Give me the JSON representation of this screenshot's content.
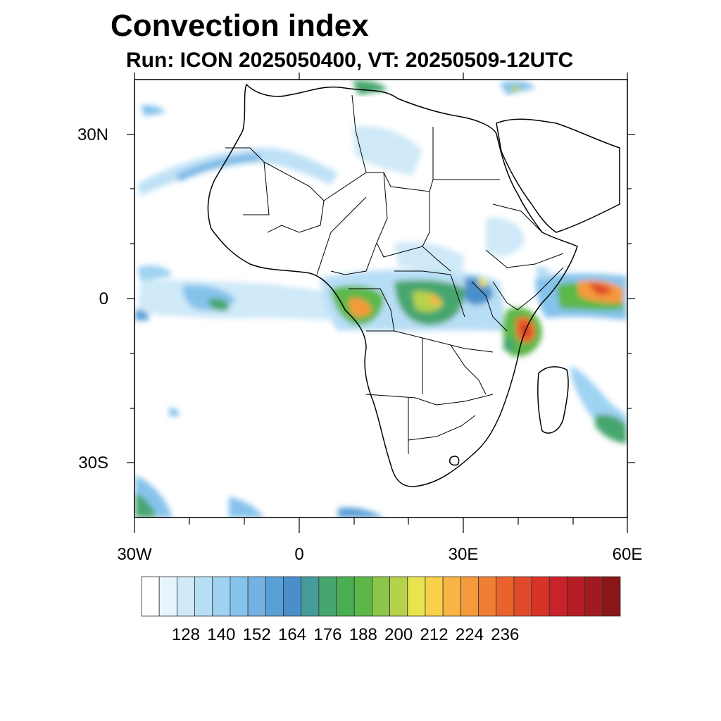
{
  "title": "Convection index",
  "subtitle": "Run: ICON 2025050400,  VT: 20250509-12UTC",
  "map": {
    "region": "Africa",
    "projection": "cylindrical equidistant",
    "lon_range": [
      -30,
      60
    ],
    "lat_range": [
      -40,
      40
    ],
    "lat_labels": [
      "30N",
      "0",
      "30S"
    ],
    "lon_labels": [
      "30W",
      "0",
      "30E",
      "60E"
    ],
    "boundaries": "country borders and coastlines (black)"
  },
  "colorbar": {
    "labels": [
      "128",
      "140",
      "152",
      "164",
      "176",
      "188",
      "200",
      "212",
      "224",
      "236"
    ],
    "colors": [
      "#ffffff",
      "#e8f4fc",
      "#cfe9f8",
      "#b8def5",
      "#9fd3f2",
      "#86c3ec",
      "#74b2e3",
      "#5a9fd6",
      "#4a8fc9",
      "#469c9a",
      "#47a66e",
      "#4aae52",
      "#5bb848",
      "#8cc54a",
      "#b6d24b",
      "#e8e34e",
      "#f8d04a",
      "#f8b546",
      "#f59a3b",
      "#f07f33",
      "#ea632c",
      "#e14a29",
      "#d83328",
      "#c92228",
      "#b51c24",
      "#a11a20",
      "#8a1718"
    ]
  },
  "convection_areas": [
    {
      "name": "Western Indian Ocean / Somali coast",
      "intensity": "high",
      "color": "#e14a29"
    },
    {
      "name": "Kenya coast",
      "intensity": "high",
      "color": "#ea632c"
    },
    {
      "name": "Gabon / Congo",
      "intensity": "high",
      "color": "#f59a3b"
    },
    {
      "name": "Congo Basin",
      "intensity": "moderate",
      "color": "#5bb848"
    },
    {
      "name": "Lake Victoria region",
      "intensity": "moderate",
      "color": "#47a66e"
    },
    {
      "name": "Equatorial Atlantic",
      "intensity": "low",
      "color": "#86c3ec"
    },
    {
      "name": "NW Africa band",
      "intensity": "low",
      "color": "#9fd3f2"
    },
    {
      "name": "Southern Ocean (SW)",
      "intensity": "moderate",
      "color": "#47a66e"
    },
    {
      "name": "Madagascar east",
      "intensity": "moderate",
      "color": "#5bb848"
    }
  ]
}
